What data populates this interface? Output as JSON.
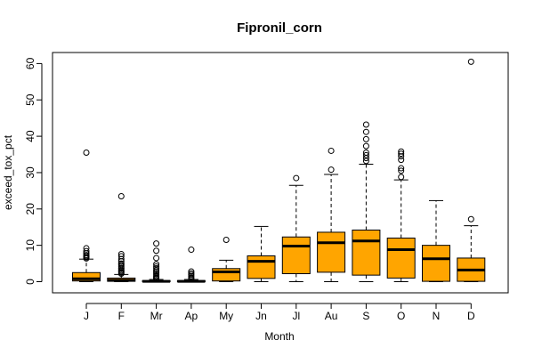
{
  "chart_data": {
    "type": "boxplot",
    "title": "Fipronil_corn",
    "xlabel": "Month",
    "ylabel": "exceed_tox_pct",
    "ylim": [
      0,
      62
    ],
    "yticks": [
      0,
      10,
      20,
      30,
      40,
      50,
      60
    ],
    "box_color": "#FFA500",
    "categories": [
      "J",
      "F",
      "Mr",
      "Ap",
      "My",
      "Jn",
      "Jl",
      "Au",
      "S",
      "O",
      "N",
      "D"
    ],
    "boxes": [
      {
        "label": "J",
        "whisker_low": 0,
        "q1": 0.2,
        "median": 0.8,
        "q3": 2.5,
        "whisker_high": 6.2,
        "outliers": [
          6.4,
          6.7,
          7.0,
          7.3,
          7.8,
          8.4,
          9.2,
          35.5
        ]
      },
      {
        "label": "F",
        "whisker_low": 0,
        "q1": 0.1,
        "median": 0.4,
        "q3": 1.0,
        "whisker_high": 2.0,
        "outliers": [
          2.2,
          2.5,
          2.8,
          3.1,
          3.5,
          3.8,
          4.2,
          4.6,
          5.0,
          5.6,
          6.2,
          7.0,
          7.6,
          23.5
        ]
      },
      {
        "label": "Mr",
        "whisker_low": 0,
        "q1": 0.0,
        "median": 0.1,
        "q3": 0.3,
        "whisker_high": 0.6,
        "outliers": [
          0.8,
          1.0,
          1.3,
          1.6,
          2.0,
          2.4,
          2.8,
          3.2,
          3.7,
          4.2,
          4.8,
          6.5,
          8.5,
          10.5
        ]
      },
      {
        "label": "Ap",
        "whisker_low": 0,
        "q1": 0.0,
        "median": 0.1,
        "q3": 0.3,
        "whisker_high": 0.6,
        "outliers": [
          0.8,
          1.1,
          1.5,
          1.9,
          2.3,
          2.8,
          8.8
        ]
      },
      {
        "label": "My",
        "whisker_low": 0,
        "q1": 0.2,
        "median": 2.7,
        "q3": 3.6,
        "whisker_high": 5.9,
        "outliers": [
          11.5
        ]
      },
      {
        "label": "Jn",
        "whisker_low": 0,
        "q1": 0.9,
        "median": 5.6,
        "q3": 7.1,
        "whisker_high": 15.2,
        "outliers": []
      },
      {
        "label": "Jl",
        "whisker_low": 0,
        "q1": 2.2,
        "median": 9.8,
        "q3": 12.3,
        "whisker_high": 26.5,
        "outliers": [
          28.5
        ]
      },
      {
        "label": "Au",
        "whisker_low": 0,
        "q1": 2.6,
        "median": 10.7,
        "q3": 13.6,
        "whisker_high": 29.5,
        "outliers": [
          30.8,
          36.0
        ]
      },
      {
        "label": "S",
        "whisker_low": 0,
        "q1": 1.8,
        "median": 11.2,
        "q3": 14.2,
        "whisker_high": 32.3,
        "outliers": [
          33.2,
          34.0,
          34.8,
          35.5,
          37.3,
          39.2,
          41.2,
          43.2
        ]
      },
      {
        "label": "O",
        "whisker_low": 0,
        "q1": 1.0,
        "median": 8.8,
        "q3": 12.0,
        "whisker_high": 28.0,
        "outliers": [
          28.8,
          30.5,
          31.2,
          33.5,
          34.5,
          35.2,
          35.8
        ]
      },
      {
        "label": "N",
        "whisker_low": 0,
        "q1": 0.1,
        "median": 6.3,
        "q3": 10.0,
        "whisker_high": 22.3,
        "outliers": []
      },
      {
        "label": "D",
        "whisker_low": 0,
        "q1": 0.1,
        "median": 3.2,
        "q3": 6.5,
        "whisker_high": 15.4,
        "outliers": [
          17.2,
          60.5
        ]
      }
    ]
  }
}
